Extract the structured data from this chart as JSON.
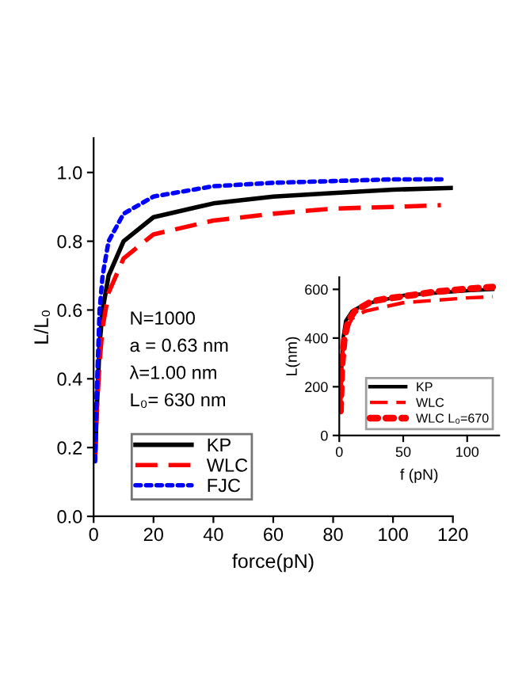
{
  "chart_data": [
    {
      "type": "line",
      "xlabel": "force(pN)",
      "ylabel": "L/L₀",
      "xlim": [
        0,
        120
      ],
      "ylim": [
        0,
        1.1
      ],
      "xticks": [
        0,
        20,
        40,
        60,
        80,
        100,
        120
      ],
      "yticks": [
        {
          "value": 0,
          "label": "0.0"
        },
        0.2,
        0.4,
        0.6,
        0.8,
        {
          "value": 1.0,
          "label": "1.0"
        }
      ],
      "grid": false,
      "legend": "bottom left",
      "annotations": [
        "N=1000",
        "a = 0.63 nm",
        "λ=1.00 nm",
        "L₀= 630 nm"
      ],
      "series": [
        {
          "name": "KP",
          "color": "#000000",
          "line_style": "solid",
          "x": [
            0.5,
            1,
            2,
            3,
            5,
            10,
            20,
            40,
            60,
            80,
            100,
            120
          ],
          "values": [
            0.17,
            0.3,
            0.5,
            0.6,
            0.7,
            0.8,
            0.87,
            0.91,
            0.93,
            0.94,
            0.95,
            0.955
          ]
        },
        {
          "name": "WLC",
          "color": "#ff0000",
          "line_style": "dashed",
          "x": [
            0.5,
            1,
            2,
            3,
            5,
            10,
            20,
            40,
            60,
            80,
            100,
            116
          ],
          "values": [
            0.17,
            0.3,
            0.45,
            0.55,
            0.65,
            0.75,
            0.82,
            0.86,
            0.88,
            0.895,
            0.9,
            0.905
          ]
        },
        {
          "name": "FJC",
          "color": "#0000ff",
          "line_style": "dotted",
          "x": [
            0.5,
            1,
            2,
            3,
            5,
            10,
            20,
            40,
            60,
            80,
            100,
            117
          ],
          "values": [
            0.16,
            0.35,
            0.6,
            0.7,
            0.8,
            0.88,
            0.93,
            0.96,
            0.97,
            0.975,
            0.98,
            0.98
          ]
        }
      ]
    },
    {
      "type": "line",
      "xlabel": "f (pN)",
      "ylabel": "L(nm)",
      "xlim": [
        0,
        125
      ],
      "ylim": [
        0,
        650
      ],
      "xticks": [
        0,
        50,
        100
      ],
      "yticks": [
        0,
        200,
        400,
        600
      ],
      "grid": false,
      "legend": "bottom right",
      "series": [
        {
          "name": "KP",
          "color": "#000000",
          "line_style": "solid",
          "x": [
            1,
            2,
            3,
            5,
            10,
            20,
            50,
            100,
            120
          ],
          "values": [
            150,
            300,
            400,
            470,
            510,
            540,
            575,
            595,
            600
          ]
        },
        {
          "name": "WLC",
          "color": "#ff0000",
          "line_style": "dashed",
          "x": [
            1,
            2,
            3,
            5,
            10,
            20,
            50,
            100,
            120
          ],
          "values": [
            100,
            280,
            360,
            430,
            480,
            510,
            545,
            565,
            570
          ]
        },
        {
          "name": "WLC L₀=670",
          "color": "#ff0000",
          "line_style": "dotted",
          "x": [
            1,
            2,
            4,
            7,
            12,
            25,
            35,
            55,
            75,
            95,
            120
          ],
          "values": [
            100,
            280,
            400,
            470,
            510,
            550,
            560,
            575,
            590,
            600,
            610
          ]
        }
      ]
    }
  ]
}
